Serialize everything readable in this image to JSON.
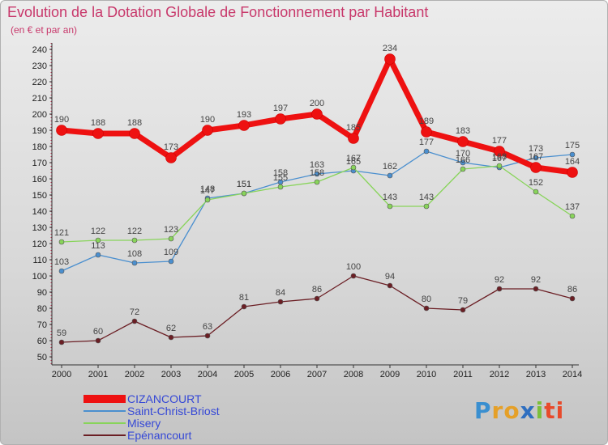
{
  "title": "Evolution de la Dotation Globale de Fonctionnement par Habitant",
  "subtitle": "(en € et par an)",
  "logo": [
    "P",
    "r",
    "o",
    "x",
    "i",
    "ti"
  ],
  "chart_data": {
    "type": "line",
    "title": "Evolution de la Dotation Globale de Fonctionnement par Habitant",
    "subtitle": "(en € et par an)",
    "x": [
      2000,
      2001,
      2002,
      2003,
      2004,
      2005,
      2006,
      2007,
      2008,
      2009,
      2010,
      2011,
      2012,
      2013,
      2014
    ],
    "ylim": [
      50,
      240
    ],
    "yticks": [
      50,
      60,
      70,
      80,
      90,
      100,
      110,
      120,
      130,
      140,
      150,
      160,
      170,
      180,
      190,
      200,
      210,
      220,
      230,
      240
    ],
    "grid": false,
    "legend_position": "bottom-left",
    "series": [
      {
        "name": "CIZANCOURT",
        "color": "#ee1111",
        "values": [
          190,
          188,
          188,
          173,
          190,
          193,
          197,
          200,
          185,
          234,
          189,
          183,
          177,
          167,
          164
        ],
        "labels": [
          "190",
          "188",
          "188",
          "173",
          "190",
          "193",
          "197",
          "200",
          "185",
          "234",
          "189",
          "183",
          "177",
          "167",
          "164"
        ]
      },
      {
        "name": "Saint-Christ-Briost",
        "color": "#4a8fcf",
        "values": [
          103,
          113,
          108,
          109,
          148,
          151,
          158,
          163,
          165,
          162,
          177,
          170,
          167,
          173,
          175
        ],
        "labels": [
          "103",
          "113",
          "108",
          "109",
          "148",
          "151",
          "158",
          "163",
          "165",
          "162",
          "177",
          "170",
          "167",
          "173",
          "175"
        ]
      },
      {
        "name": "Misery",
        "color": "#88d45a",
        "values": [
          121,
          122,
          122,
          123,
          147,
          151,
          155,
          158,
          167,
          143,
          143,
          166,
          168,
          152,
          137
        ],
        "labels": [
          "121",
          "122",
          "122",
          "123",
          "147",
          "151",
          "155",
          "158",
          "167",
          "143",
          "143",
          "166",
          "168",
          "152",
          "137"
        ]
      },
      {
        "name": "Epénancourt",
        "color": "#6b1e24",
        "values": [
          59,
          60,
          72,
          62,
          63,
          81,
          84,
          86,
          100,
          94,
          80,
          79,
          92,
          92,
          86
        ],
        "labels": [
          "59",
          "60",
          "72",
          "62",
          "63",
          "81",
          "84",
          "86",
          "100",
          "94",
          "80",
          "79",
          "92",
          "92",
          "86"
        ]
      }
    ]
  }
}
